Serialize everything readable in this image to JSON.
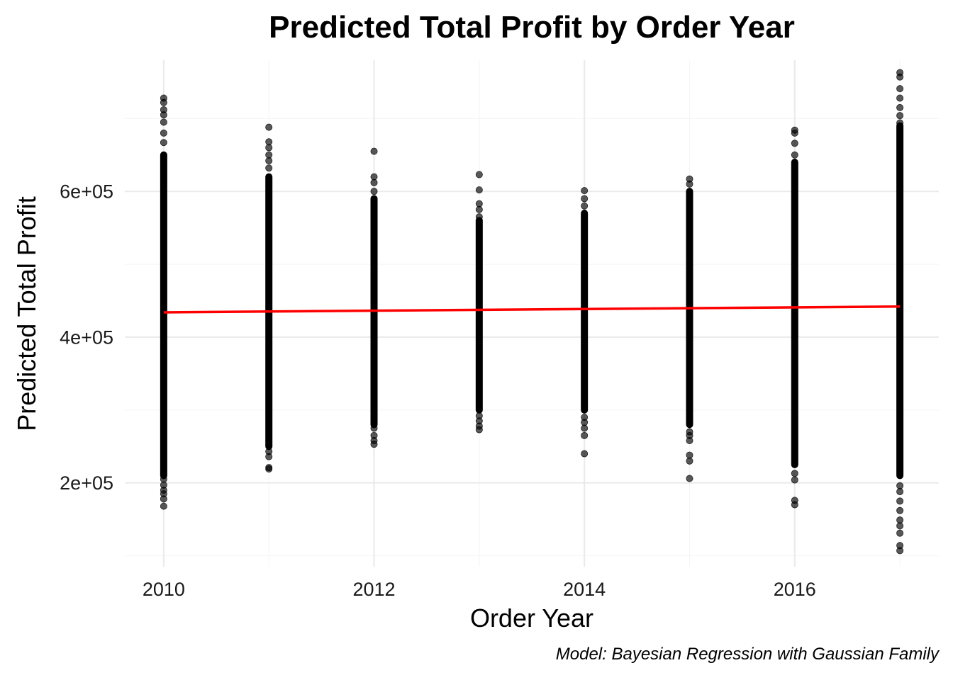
{
  "chart_data": {
    "type": "scatter",
    "title": "Predicted Total Profit by Order Year",
    "xlabel": "Order Year",
    "ylabel": "Predicted Total Profit",
    "caption": "Model: Bayesian Regression with Gaussian Family",
    "xlim": [
      2009.63,
      2017.37
    ],
    "ylim": [
      85000,
      780000
    ],
    "x_ticks": [
      2010,
      2012,
      2014,
      2016
    ],
    "x_tick_labels": [
      "2010",
      "2012",
      "2014",
      "2016"
    ],
    "y_ticks": [
      200000,
      400000,
      600000
    ],
    "y_tick_labels": [
      "2e+05",
      "4e+05",
      "6e+05"
    ],
    "grid": true,
    "legend": "none",
    "colors": {
      "points": "#000000",
      "trend": "#ff0000",
      "grid_major": "#ebebeb",
      "grid_minor": "#f5f5f5"
    },
    "series": [
      {
        "type": "scatter",
        "x": [
          2010,
          2011,
          2012,
          2013,
          2014,
          2015,
          2016,
          2017
        ],
        "dense_min": [
          210000,
          250000,
          280000,
          300000,
          300000,
          280000,
          225000,
          210000
        ],
        "dense_max": [
          650000,
          620000,
          590000,
          560000,
          570000,
          600000,
          640000,
          690000
        ],
        "outliers": [
          [
            2010,
            728000
          ],
          [
            2010,
            722000
          ],
          [
            2010,
            712000
          ],
          [
            2010,
            705000
          ],
          [
            2010,
            695000
          ],
          [
            2010,
            680000
          ],
          [
            2010,
            667000
          ],
          [
            2010,
            205000
          ],
          [
            2010,
            197000
          ],
          [
            2010,
            190000
          ],
          [
            2010,
            185000
          ],
          [
            2010,
            178000
          ],
          [
            2010,
            168000
          ],
          [
            2011,
            688000
          ],
          [
            2011,
            668000
          ],
          [
            2011,
            660000
          ],
          [
            2011,
            650000
          ],
          [
            2011,
            642000
          ],
          [
            2011,
            632000
          ],
          [
            2011,
            243000
          ],
          [
            2011,
            236000
          ],
          [
            2011,
            221000
          ],
          [
            2011,
            219000
          ],
          [
            2012,
            655000
          ],
          [
            2012,
            620000
          ],
          [
            2012,
            612000
          ],
          [
            2012,
            600000
          ],
          [
            2012,
            275000
          ],
          [
            2012,
            265000
          ],
          [
            2012,
            258000
          ],
          [
            2012,
            253000
          ],
          [
            2013,
            623000
          ],
          [
            2013,
            602000
          ],
          [
            2013,
            583000
          ],
          [
            2013,
            575000
          ],
          [
            2013,
            565000
          ],
          [
            2013,
            292000
          ],
          [
            2013,
            285000
          ],
          [
            2013,
            278000
          ],
          [
            2013,
            273000
          ],
          [
            2014,
            601000
          ],
          [
            2014,
            590000
          ],
          [
            2014,
            580000
          ],
          [
            2014,
            290000
          ],
          [
            2014,
            283000
          ],
          [
            2014,
            275000
          ],
          [
            2014,
            265000
          ],
          [
            2014,
            240000
          ],
          [
            2015,
            617000
          ],
          [
            2015,
            610000
          ],
          [
            2015,
            270000
          ],
          [
            2015,
            265000
          ],
          [
            2015,
            258000
          ],
          [
            2015,
            238000
          ],
          [
            2015,
            230000
          ],
          [
            2015,
            206000
          ],
          [
            2016,
            684000
          ],
          [
            2016,
            680000
          ],
          [
            2016,
            666000
          ],
          [
            2016,
            650000
          ],
          [
            2016,
            213000
          ],
          [
            2016,
            204000
          ],
          [
            2016,
            176000
          ],
          [
            2016,
            170000
          ],
          [
            2017,
            763000
          ],
          [
            2017,
            757000
          ],
          [
            2017,
            741000
          ],
          [
            2017,
            728000
          ],
          [
            2017,
            715000
          ],
          [
            2017,
            704000
          ],
          [
            2017,
            694000
          ],
          [
            2017,
            196000
          ],
          [
            2017,
            188000
          ],
          [
            2017,
            175000
          ],
          [
            2017,
            162000
          ],
          [
            2017,
            149000
          ],
          [
            2017,
            141000
          ],
          [
            2017,
            131000
          ],
          [
            2017,
            114000
          ],
          [
            2017,
            107000
          ]
        ]
      },
      {
        "type": "line",
        "x": [
          2010,
          2017
        ],
        "y": [
          434000,
          442000
        ]
      }
    ]
  }
}
